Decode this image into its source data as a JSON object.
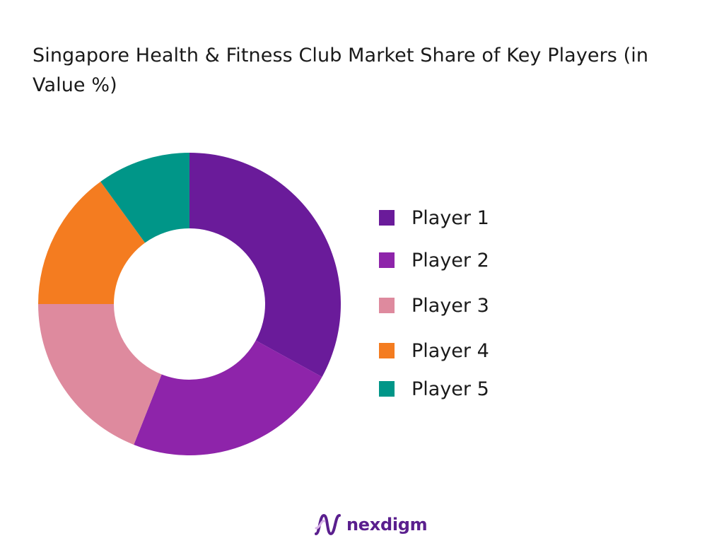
{
  "chart_data": {
    "type": "pie",
    "variant": "donut",
    "title": "Singapore Health & Fitness Club Market Share of Key Players (in Value %)",
    "categories": [
      "Player 1",
      "Player 2",
      "Player 3",
      "Player 4",
      "Player 5"
    ],
    "values": [
      33,
      23,
      19,
      15,
      10
    ],
    "colors": [
      "#6a1b9a",
      "#8e24aa",
      "#de8a9e",
      "#f47c20",
      "#009688"
    ],
    "legend_position": "right",
    "start_angle_deg": 0,
    "direction": "clockwise"
  },
  "logo": {
    "text": "nexdigm",
    "icon": "nexdigm-wave-icon",
    "color": "#5a1f8e"
  }
}
